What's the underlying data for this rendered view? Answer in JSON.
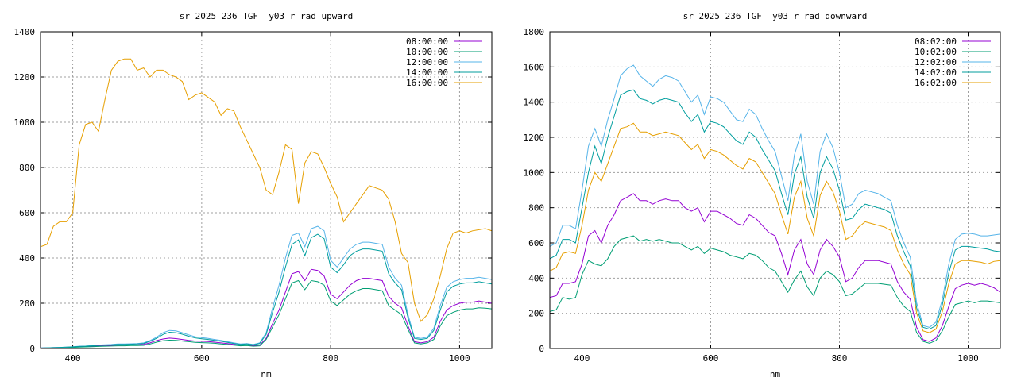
{
  "chart_data": [
    {
      "type": "line",
      "title": "sr_2025_236_TGF__y03_r_rad_upward",
      "xlabel": "nm",
      "ylabel": "",
      "xlim": [
        350,
        1050
      ],
      "ylim": [
        0,
        1400
      ],
      "xticks": [
        400,
        600,
        800,
        1000
      ],
      "yticks": [
        0,
        200,
        400,
        600,
        800,
        1000,
        1200,
        1400
      ],
      "grid": true,
      "legend": "top-right",
      "x": [
        350,
        360,
        370,
        380,
        390,
        400,
        410,
        420,
        430,
        440,
        450,
        460,
        470,
        480,
        490,
        500,
        510,
        520,
        530,
        540,
        550,
        560,
        570,
        580,
        590,
        600,
        610,
        620,
        630,
        640,
        650,
        660,
        670,
        680,
        690,
        700,
        710,
        720,
        730,
        740,
        750,
        760,
        770,
        780,
        790,
        800,
        810,
        820,
        830,
        840,
        850,
        860,
        870,
        880,
        890,
        900,
        910,
        920,
        930,
        940,
        950,
        960,
        970,
        980,
        990,
        1000,
        1010,
        1020,
        1030,
        1040,
        1050
      ],
      "series": [
        {
          "name": "08:00:00",
          "color": "#9400d3",
          "values": [
            2,
            3,
            4,
            4,
            5,
            6,
            8,
            9,
            10,
            11,
            13,
            14,
            15,
            15,
            16,
            16,
            18,
            25,
            35,
            42,
            46,
            44,
            40,
            36,
            33,
            32,
            31,
            28,
            25,
            22,
            18,
            14,
            15,
            12,
            15,
            45,
            110,
            170,
            250,
            330,
            340,
            300,
            350,
            345,
            320,
            240,
            220,
            250,
            280,
            300,
            310,
            310,
            305,
            300,
            230,
            200,
            180,
            100,
            30,
            25,
            30,
            50,
            120,
            170,
            190,
            200,
            205,
            205,
            210,
            205,
            200
          ]
        },
        {
          "name": "10:00:00",
          "color": "#009e73",
          "values": [
            1,
            2,
            3,
            3,
            4,
            5,
            6,
            7,
            8,
            9,
            10,
            11,
            12,
            12,
            13,
            13,
            14,
            20,
            28,
            34,
            37,
            36,
            33,
            30,
            27,
            26,
            25,
            23,
            20,
            18,
            15,
            12,
            13,
            10,
            12,
            40,
            95,
            150,
            220,
            290,
            300,
            260,
            300,
            295,
            280,
            210,
            190,
            215,
            240,
            255,
            265,
            265,
            260,
            255,
            190,
            170,
            150,
            85,
            25,
            20,
            25,
            40,
            100,
            145,
            160,
            170,
            175,
            175,
            180,
            178,
            175
          ]
        },
        {
          "name": "12:00:00",
          "color": "#56b4e9",
          "values": [
            2,
            3,
            4,
            5,
            6,
            8,
            10,
            11,
            13,
            15,
            17,
            18,
            20,
            20,
            21,
            22,
            25,
            35,
            50,
            70,
            80,
            78,
            70,
            60,
            52,
            48,
            45,
            40,
            36,
            30,
            25,
            20,
            22,
            18,
            25,
            70,
            180,
            280,
            400,
            500,
            510,
            450,
            530,
            540,
            520,
            390,
            360,
            400,
            440,
            460,
            470,
            470,
            465,
            460,
            360,
            310,
            280,
            150,
            50,
            45,
            50,
            90,
            190,
            270,
            295,
            305,
            310,
            310,
            315,
            310,
            305
          ]
        },
        {
          "name": "14:00:00",
          "color": "#009e9e",
          "values": [
            2,
            3,
            4,
            5,
            6,
            7,
            9,
            10,
            12,
            14,
            15,
            16,
            18,
            18,
            19,
            20,
            22,
            32,
            45,
            62,
            72,
            70,
            63,
            54,
            47,
            43,
            40,
            36,
            32,
            27,
            22,
            18,
            20,
            16,
            22,
            62,
            160,
            250,
            360,
            460,
            480,
            410,
            490,
            505,
            485,
            360,
            335,
            370,
            410,
            430,
            440,
            440,
            435,
            430,
            330,
            290,
            260,
            135,
            45,
            40,
            45,
            80,
            170,
            250,
            275,
            285,
            290,
            290,
            295,
            290,
            285
          ]
        },
        {
          "name": "16:00:00",
          "color": "#e69f00",
          "values": [
            450,
            460,
            540,
            560,
            560,
            600,
            900,
            990,
            1000,
            960,
            1100,
            1230,
            1270,
            1280,
            1280,
            1230,
            1240,
            1200,
            1230,
            1230,
            1210,
            1200,
            1180,
            1100,
            1120,
            1130,
            1110,
            1090,
            1030,
            1060,
            1050,
            980,
            920,
            860,
            800,
            700,
            680,
            780,
            900,
            880,
            640,
            820,
            870,
            860,
            800,
            730,
            670,
            560,
            600,
            640,
            680,
            720,
            710,
            700,
            660,
            560,
            420,
            380,
            200,
            120,
            150,
            220,
            320,
            440,
            510,
            520,
            510,
            520,
            525,
            530,
            520
          ]
        }
      ]
    },
    {
      "type": "line",
      "title": "sr_2025_236_TGF__y03_r_rad_downward",
      "xlabel": "nm",
      "ylabel": "",
      "xlim": [
        350,
        1050
      ],
      "ylim": [
        0,
        1800
      ],
      "xticks": [
        400,
        600,
        800,
        1000
      ],
      "yticks": [
        0,
        200,
        400,
        600,
        800,
        1000,
        1200,
        1400,
        1600,
        1800
      ],
      "grid": true,
      "legend": "top-right",
      "x": [
        350,
        360,
        370,
        380,
        390,
        400,
        410,
        420,
        430,
        440,
        450,
        460,
        470,
        480,
        490,
        500,
        510,
        520,
        530,
        540,
        550,
        560,
        570,
        580,
        590,
        600,
        610,
        620,
        630,
        640,
        650,
        660,
        670,
        680,
        690,
        700,
        710,
        720,
        730,
        740,
        750,
        760,
        770,
        780,
        790,
        800,
        810,
        820,
        830,
        840,
        850,
        860,
        870,
        880,
        890,
        900,
        910,
        920,
        930,
        940,
        950,
        960,
        970,
        980,
        990,
        1000,
        1010,
        1020,
        1030,
        1040,
        1050
      ],
      "series": [
        {
          "name": "08:02:00",
          "color": "#9400d3",
          "values": [
            290,
            300,
            370,
            370,
            380,
            480,
            640,
            670,
            600,
            700,
            760,
            840,
            860,
            880,
            840,
            840,
            820,
            840,
            850,
            840,
            840,
            800,
            780,
            800,
            720,
            780,
            780,
            760,
            740,
            710,
            700,
            760,
            740,
            700,
            660,
            640,
            540,
            420,
            560,
            620,
            480,
            420,
            560,
            620,
            580,
            520,
            380,
            400,
            460,
            500,
            500,
            500,
            490,
            480,
            380,
            320,
            280,
            120,
            50,
            40,
            60,
            130,
            240,
            340,
            360,
            370,
            360,
            370,
            360,
            345,
            320
          ]
        },
        {
          "name": "10:02:00",
          "color": "#009e73",
          "values": [
            210,
            220,
            290,
            280,
            290,
            420,
            500,
            480,
            470,
            510,
            580,
            620,
            630,
            640,
            610,
            620,
            610,
            620,
            610,
            600,
            600,
            580,
            560,
            580,
            540,
            570,
            560,
            550,
            530,
            520,
            510,
            540,
            530,
            500,
            460,
            440,
            380,
            320,
            390,
            440,
            350,
            300,
            400,
            440,
            420,
            380,
            300,
            310,
            340,
            370,
            370,
            370,
            365,
            360,
            290,
            240,
            210,
            90,
            40,
            30,
            45,
            100,
            180,
            250,
            260,
            270,
            260,
            270,
            270,
            265,
            260
          ]
        },
        {
          "name": "12:02:00",
          "color": "#56b4e9",
          "values": [
            580,
            600,
            700,
            700,
            680,
            900,
            1150,
            1250,
            1150,
            1300,
            1420,
            1550,
            1590,
            1610,
            1550,
            1520,
            1490,
            1530,
            1550,
            1540,
            1520,
            1460,
            1400,
            1440,
            1330,
            1430,
            1420,
            1400,
            1350,
            1300,
            1290,
            1360,
            1330,
            1250,
            1180,
            1120,
            980,
            840,
            1100,
            1220,
            950,
            820,
            1120,
            1220,
            1140,
            1000,
            800,
            820,
            880,
            900,
            890,
            880,
            860,
            840,
            700,
            600,
            520,
            260,
            130,
            120,
            150,
            280,
            480,
            620,
            650,
            655,
            650,
            640,
            640,
            645,
            650
          ]
        },
        {
          "name": "14:02:00",
          "color": "#009e9e",
          "values": [
            510,
            530,
            620,
            620,
            600,
            800,
            1000,
            1150,
            1050,
            1200,
            1320,
            1440,
            1460,
            1470,
            1420,
            1410,
            1390,
            1410,
            1420,
            1410,
            1400,
            1340,
            1290,
            1330,
            1230,
            1290,
            1280,
            1260,
            1220,
            1180,
            1160,
            1230,
            1200,
            1130,
            1070,
            1010,
            880,
            760,
            990,
            1090,
            860,
            740,
            1000,
            1090,
            1020,
            900,
            730,
            740,
            790,
            820,
            810,
            800,
            790,
            770,
            640,
            550,
            470,
            230,
            120,
            110,
            130,
            250,
            430,
            560,
            580,
            580,
            575,
            570,
            565,
            555,
            550
          ]
        },
        {
          "name": "16:02:00",
          "color": "#e69f00",
          "values": [
            440,
            460,
            540,
            550,
            540,
            700,
            900,
            1000,
            950,
            1050,
            1150,
            1250,
            1260,
            1280,
            1230,
            1230,
            1210,
            1220,
            1230,
            1220,
            1210,
            1170,
            1130,
            1160,
            1080,
            1130,
            1120,
            1100,
            1070,
            1040,
            1020,
            1080,
            1060,
            1000,
            940,
            880,
            760,
            650,
            860,
            950,
            740,
            640,
            870,
            950,
            890,
            780,
            620,
            640,
            690,
            720,
            710,
            700,
            690,
            670,
            560,
            480,
            420,
            200,
            100,
            90,
            110,
            210,
            370,
            480,
            500,
            500,
            495,
            490,
            480,
            495,
            500
          ]
        }
      ]
    }
  ]
}
